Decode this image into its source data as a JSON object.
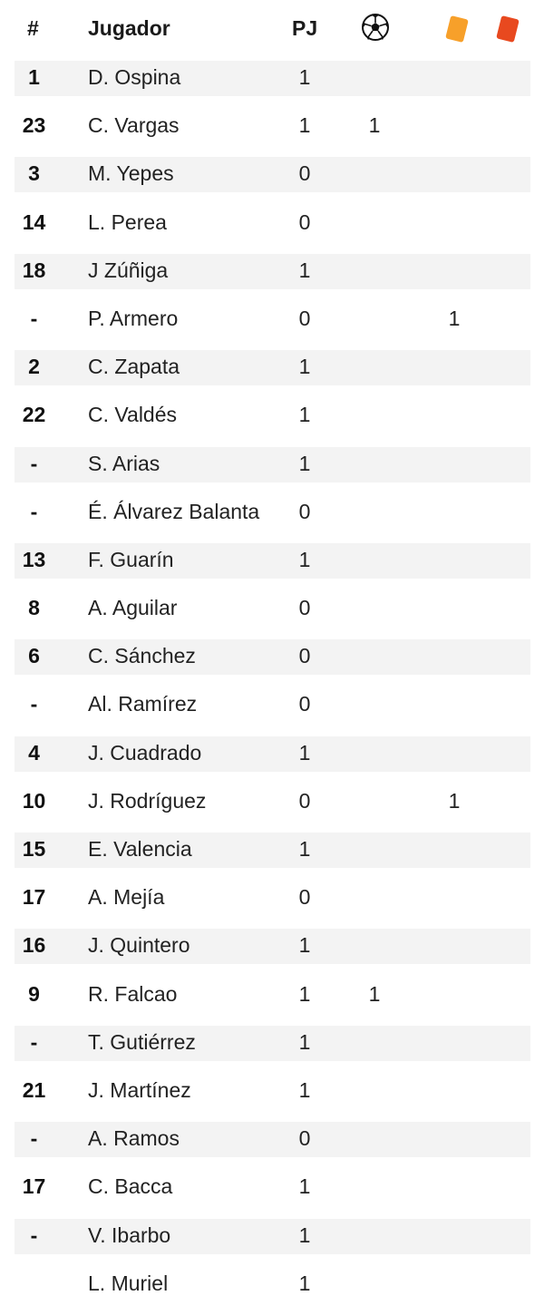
{
  "header": {
    "number": "#",
    "player": "Jugador",
    "played": "PJ",
    "goals_icon": "soccer-ball-icon",
    "yellow_icon": "yellow-card-icon",
    "red_icon": "red-card-icon"
  },
  "colors": {
    "yellow_card": "#F7A02A",
    "red_card": "#E8491F",
    "row_shade": "#F3F3F3"
  },
  "players": [
    {
      "number": "1",
      "name": "D. Ospina",
      "played": "1",
      "goals": "",
      "yellow": "",
      "red": ""
    },
    {
      "number": "23",
      "name": "C. Vargas",
      "played": "1",
      "goals": "1",
      "yellow": "",
      "red": ""
    },
    {
      "number": "3",
      "name": "M. Yepes",
      "played": "0",
      "goals": "",
      "yellow": "",
      "red": ""
    },
    {
      "number": "14",
      "name": "L. Perea",
      "played": "0",
      "goals": "",
      "yellow": "",
      "red": ""
    },
    {
      "number": "18",
      "name": "J Zúñiga",
      "played": "1",
      "goals": "",
      "yellow": "",
      "red": ""
    },
    {
      "number": "-",
      "name": "P. Armero",
      "played": "0",
      "goals": "",
      "yellow": "1",
      "red": ""
    },
    {
      "number": "2",
      "name": "C. Zapata",
      "played": "1",
      "goals": "",
      "yellow": "",
      "red": ""
    },
    {
      "number": "22",
      "name": "C. Valdés",
      "played": "1",
      "goals": "",
      "yellow": "",
      "red": ""
    },
    {
      "number": "-",
      "name": "S. Arias",
      "played": "1",
      "goals": "",
      "yellow": "",
      "red": ""
    },
    {
      "number": "-",
      "name": "É. Álvarez Balanta",
      "played": "0",
      "goals": "",
      "yellow": "",
      "red": ""
    },
    {
      "number": "13",
      "name": "F. Guarín",
      "played": "1",
      "goals": "",
      "yellow": "",
      "red": ""
    },
    {
      "number": "8",
      "name": "A. Aguilar",
      "played": "0",
      "goals": "",
      "yellow": "",
      "red": ""
    },
    {
      "number": "6",
      "name": "C. Sánchez",
      "played": "0",
      "goals": "",
      "yellow": "",
      "red": ""
    },
    {
      "number": "-",
      "name": "Al. Ramírez",
      "played": "0",
      "goals": "",
      "yellow": "",
      "red": ""
    },
    {
      "number": "4",
      "name": "J. Cuadrado",
      "played": "1",
      "goals": "",
      "yellow": "",
      "red": ""
    },
    {
      "number": "10",
      "name": "J. Rodríguez",
      "played": "0",
      "goals": "",
      "yellow": "1",
      "red": ""
    },
    {
      "number": "15",
      "name": "E. Valencia",
      "played": "1",
      "goals": "",
      "yellow": "",
      "red": ""
    },
    {
      "number": "17",
      "name": "A. Mejía",
      "played": "0",
      "goals": "",
      "yellow": "",
      "red": ""
    },
    {
      "number": "16",
      "name": "J. Quintero",
      "played": "1",
      "goals": "",
      "yellow": "",
      "red": ""
    },
    {
      "number": "9",
      "name": "R. Falcao",
      "played": "1",
      "goals": "1",
      "yellow": "",
      "red": ""
    },
    {
      "number": "-",
      "name": "T. Gutiérrez",
      "played": "1",
      "goals": "",
      "yellow": "",
      "red": ""
    },
    {
      "number": "21",
      "name": "J. Martínez",
      "played": "1",
      "goals": "",
      "yellow": "",
      "red": ""
    },
    {
      "number": "-",
      "name": "A. Ramos",
      "played": "0",
      "goals": "",
      "yellow": "",
      "red": ""
    },
    {
      "number": "17",
      "name": "C. Bacca",
      "played": "1",
      "goals": "",
      "yellow": "",
      "red": ""
    },
    {
      "number": "-",
      "name": "V. Ibarbo",
      "played": "1",
      "goals": "",
      "yellow": "",
      "red": ""
    },
    {
      "number": "",
      "name": "L. Muriel",
      "played": "1",
      "goals": "",
      "yellow": "",
      "red": ""
    }
  ]
}
